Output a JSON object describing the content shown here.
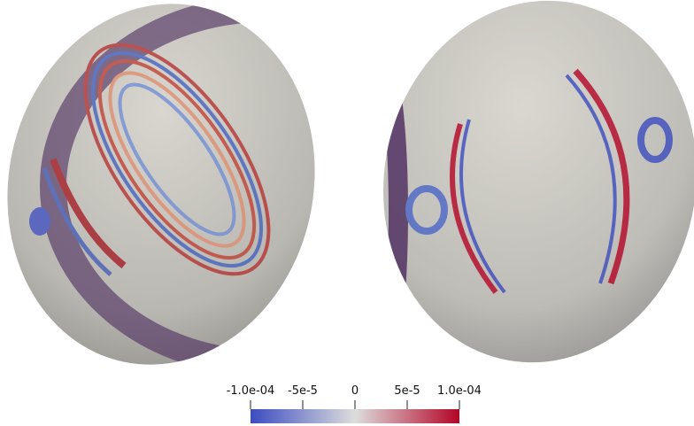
{
  "colorbar": {
    "lim": [
      -0.0001,
      0.0001
    ],
    "ticks": [
      {
        "value": -0.0001,
        "label": "-1.0e-04"
      },
      {
        "value": -5e-05,
        "label": "-5e-5"
      },
      0,
      {
        "value": 5e-05,
        "label": "5e-5"
      },
      {
        "value": 0.0001,
        "label": "1.0e-04"
      }
    ],
    "colors": [
      "#3b4cc0",
      "#dddddd",
      "#b40426"
    ]
  }
}
